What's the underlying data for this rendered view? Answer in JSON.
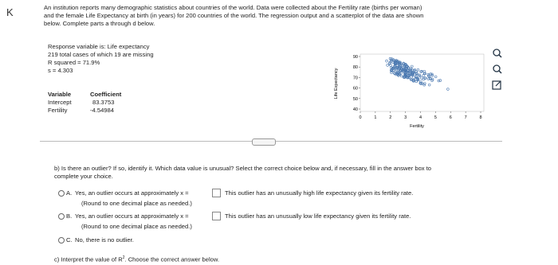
{
  "header": {
    "back": "K",
    "intro": [
      "An institution reports many demographic statistics about countries of the world. Data were collected about the Fertility rate (births per woman)",
      "and the female Life Expectancy at birth (in years) for 200 countries of the world. The regression output and a scatterplot of the data are shown",
      "below. Complete parts a through d below."
    ]
  },
  "output": {
    "lines": [
      "Response variable is: Life expectancy",
      "219 total cases of which 19 are missing",
      "R squared = 71.9%",
      "s = 4.303"
    ],
    "table": {
      "headers": [
        "Variable",
        "Coefficient"
      ],
      "rows": [
        [
          "Intercept",
          "83.3753"
        ],
        [
          "Fertility",
          "-4.54984"
        ]
      ]
    }
  },
  "plot": {
    "y_label": "Life Expectancy",
    "x_label": "Fertility",
    "yticks": [
      "90",
      "80",
      "70",
      "60",
      "50",
      "40"
    ],
    "xticks": [
      "0",
      "1",
      "2",
      "3",
      "4",
      "5",
      "6",
      "7",
      "8"
    ]
  },
  "question_b": [
    "b) Is there an outlier? If so, identify it. Which data value is unusual? Select the correct choice below and, if necessary, fill in the answer box to",
    "complete your choice."
  ],
  "options": [
    {
      "letter": "A.",
      "text": "Yes, an outlier occurs at approximately x =",
      "result": "This outlier has an unusually high life expectancy given its fertility rate.",
      "note": "(Round to one decimal place as needed.)"
    },
    {
      "letter": "B.",
      "text": "Yes, an outlier occurs at approximately x =",
      "result": "This outlier has an unusually low life expectancy given its fertility rate.",
      "note": "(Round to one decimal place as needed.)"
    },
    {
      "letter": "C.",
      "text": "No, there is no outlier."
    }
  ],
  "question_c": {
    "before": "c) Interpret the value of R",
    "sup": "2",
    "after": ". Choose the correct answer below."
  }
}
